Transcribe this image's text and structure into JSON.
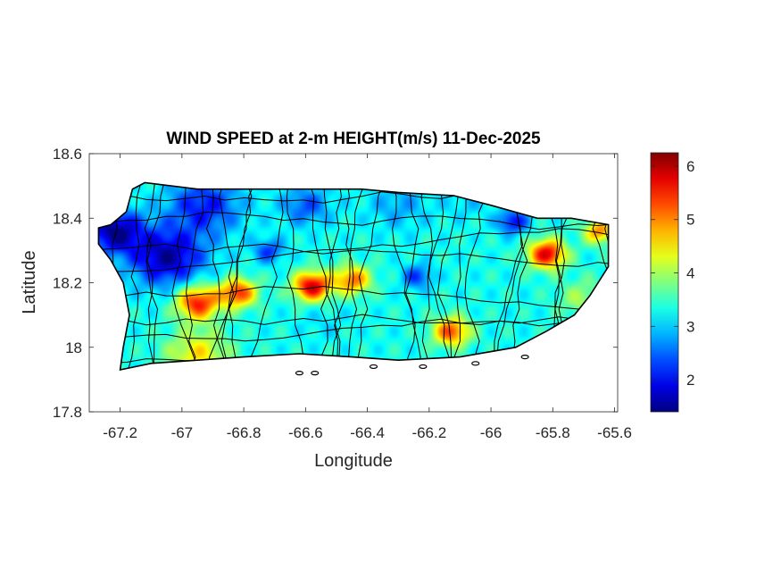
{
  "chart_data": {
    "type": "heatmap",
    "title": "WIND SPEED at 2-m HEIGHT(m/s) 11-Dec-2025",
    "xlabel": "Longitude",
    "ylabel": "Latitude",
    "xlim": [
      -67.3,
      -65.59
    ],
    "ylim": [
      17.8,
      18.6
    ],
    "x_ticks": [
      -67.2,
      -67,
      -66.8,
      -66.6,
      -66.4,
      -66.2,
      -66,
      -65.8,
      -65.6
    ],
    "x_tick_labels": [
      "-67.2",
      "-67",
      "-66.8",
      "-66.6",
      "-66.4",
      "-66.2",
      "-66",
      "-65.8",
      "-65.6"
    ],
    "y_ticks": [
      17.8,
      18,
      18.2,
      18.4,
      18.6
    ],
    "y_tick_labels": [
      "17.8",
      "18",
      "18.2",
      "18.4",
      "18.6"
    ],
    "colorbar": {
      "colormap": "jet",
      "clim": [
        1.4,
        6.25
      ],
      "ticks": [
        2,
        3,
        4,
        5,
        6
      ],
      "tick_labels": [
        "2",
        "3",
        "4",
        "5",
        "6"
      ]
    },
    "grid": false,
    "coastline_lonlat": [
      [
        -67.27,
        18.37
      ],
      [
        -67.23,
        18.38
      ],
      [
        -67.18,
        18.42
      ],
      [
        -67.16,
        18.49
      ],
      [
        -67.12,
        18.51
      ],
      [
        -66.95,
        18.49
      ],
      [
        -66.8,
        18.49
      ],
      [
        -66.6,
        18.49
      ],
      [
        -66.42,
        18.49
      ],
      [
        -66.3,
        18.48
      ],
      [
        -66.12,
        18.47
      ],
      [
        -66.0,
        18.44
      ],
      [
        -65.85,
        18.4
      ],
      [
        -65.74,
        18.4
      ],
      [
        -65.62,
        18.38
      ],
      [
        -65.62,
        18.25
      ],
      [
        -65.68,
        18.16
      ],
      [
        -65.73,
        18.1
      ],
      [
        -65.82,
        18.05
      ],
      [
        -65.92,
        18.0
      ],
      [
        -66.1,
        17.97
      ],
      [
        -66.3,
        17.96
      ],
      [
        -66.45,
        17.97
      ],
      [
        -66.62,
        17.98
      ],
      [
        -66.8,
        17.97
      ],
      [
        -66.95,
        17.96
      ],
      [
        -67.1,
        17.95
      ],
      [
        -67.2,
        17.93
      ],
      [
        -67.19,
        18.0
      ],
      [
        -67.17,
        18.1
      ],
      [
        -67.19,
        18.2
      ],
      [
        -67.23,
        18.27
      ],
      [
        -67.27,
        18.32
      ]
    ],
    "islets_lonlat": [
      [
        -66.57,
        17.92
      ],
      [
        -66.62,
        17.92
      ],
      [
        -66.38,
        17.94
      ],
      [
        -66.22,
        17.94
      ],
      [
        -66.05,
        17.95
      ],
      [
        -65.89,
        17.97
      ]
    ],
    "wind_features": [
      {
        "lon": -67.22,
        "lat": 18.36,
        "value": 1.5,
        "spread": 0.09
      },
      {
        "lon": -67.05,
        "lat": 18.28,
        "value": 1.6,
        "spread": 0.12
      },
      {
        "lon": -66.93,
        "lat": 18.44,
        "value": 2.1,
        "spread": 0.12
      },
      {
        "lon": -66.72,
        "lat": 18.3,
        "value": 2.3,
        "spread": 0.05
      },
      {
        "lon": -66.6,
        "lat": 18.44,
        "value": 2.4,
        "spread": 0.08
      },
      {
        "lon": -66.3,
        "lat": 18.44,
        "value": 2.8,
        "spread": 0.1
      },
      {
        "lon": -66.08,
        "lat": 18.45,
        "value": 3.0,
        "spread": 0.07
      },
      {
        "lon": -65.93,
        "lat": 18.39,
        "value": 2.0,
        "spread": 0.05
      },
      {
        "lon": -66.24,
        "lat": 18.22,
        "value": 2.3,
        "spread": 0.05
      },
      {
        "lon": -66.95,
        "lat": 18.14,
        "value": 5.6,
        "spread": 0.07
      },
      {
        "lon": -66.82,
        "lat": 18.17,
        "value": 5.4,
        "spread": 0.06
      },
      {
        "lon": -66.58,
        "lat": 18.19,
        "value": 5.9,
        "spread": 0.06
      },
      {
        "lon": -66.45,
        "lat": 18.21,
        "value": 5.1,
        "spread": 0.06
      },
      {
        "lon": -66.13,
        "lat": 18.05,
        "value": 5.3,
        "spread": 0.06
      },
      {
        "lon": -65.82,
        "lat": 18.29,
        "value": 5.8,
        "spread": 0.06
      },
      {
        "lon": -65.65,
        "lat": 18.36,
        "value": 5.0,
        "spread": 0.05
      },
      {
        "lon": -66.95,
        "lat": 17.98,
        "value": 4.5,
        "spread": 0.1
      },
      {
        "lon": -66.55,
        "lat": 18.08,
        "value": 3.1,
        "spread": 0.08
      },
      {
        "lon": -65.7,
        "lat": 18.15,
        "value": 4.0,
        "spread": 0.08
      }
    ]
  }
}
